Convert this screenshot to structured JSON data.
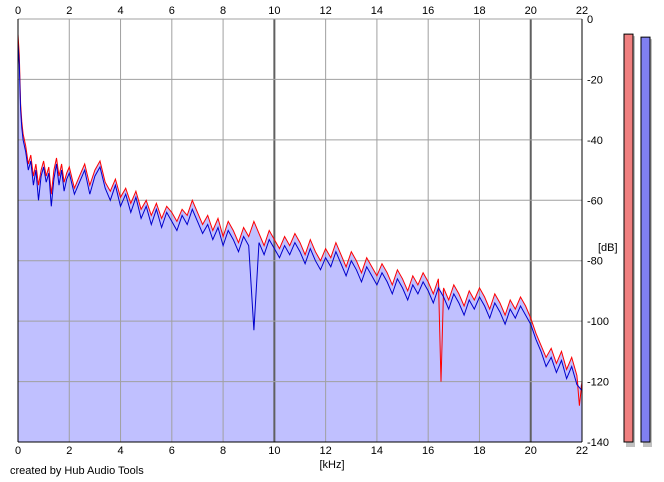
{
  "chart_data": {
    "type": "area",
    "title": "",
    "xlabel": "[kHz]",
    "ylabel": "[dB]",
    "xlim": [
      0,
      22
    ],
    "ylim": [
      -140,
      0
    ],
    "x_ticks": [
      0,
      2,
      4,
      6,
      8,
      10,
      12,
      14,
      16,
      18,
      20,
      22
    ],
    "y_ticks": [
      0,
      -20,
      -40,
      -60,
      -80,
      -100,
      -120,
      -140
    ],
    "grid": true,
    "series": [
      {
        "color": "#ff0000",
        "points": [
          [
            0.0,
            -5
          ],
          [
            0.05,
            -12
          ],
          [
            0.1,
            -28
          ],
          [
            0.15,
            -34
          ],
          [
            0.2,
            -38
          ],
          [
            0.3,
            -42
          ],
          [
            0.4,
            -48
          ],
          [
            0.5,
            -45
          ],
          [
            0.6,
            -52
          ],
          [
            0.7,
            -48
          ],
          [
            0.8,
            -55
          ],
          [
            0.9,
            -50
          ],
          [
            1.0,
            -47
          ],
          [
            1.1,
            -52
          ],
          [
            1.2,
            -49
          ],
          [
            1.3,
            -58
          ],
          [
            1.4,
            -50
          ],
          [
            1.5,
            -46
          ],
          [
            1.6,
            -52
          ],
          [
            1.7,
            -48
          ],
          [
            1.8,
            -54
          ],
          [
            1.9,
            -51
          ],
          [
            2.0,
            -49
          ],
          [
            2.2,
            -56
          ],
          [
            2.4,
            -52
          ],
          [
            2.6,
            -48
          ],
          [
            2.8,
            -55
          ],
          [
            3.0,
            -50
          ],
          [
            3.2,
            -47
          ],
          [
            3.4,
            -54
          ],
          [
            3.6,
            -57
          ],
          [
            3.8,
            -53
          ],
          [
            4.0,
            -59
          ],
          [
            4.2,
            -56
          ],
          [
            4.4,
            -61
          ],
          [
            4.6,
            -57
          ],
          [
            4.8,
            -63
          ],
          [
            5.0,
            -60
          ],
          [
            5.2,
            -65
          ],
          [
            5.4,
            -61
          ],
          [
            5.6,
            -66
          ],
          [
            5.8,
            -62
          ],
          [
            6.0,
            -64
          ],
          [
            6.2,
            -67
          ],
          [
            6.4,
            -63
          ],
          [
            6.6,
            -65
          ],
          [
            6.8,
            -60
          ],
          [
            7.0,
            -64
          ],
          [
            7.2,
            -68
          ],
          [
            7.4,
            -65
          ],
          [
            7.6,
            -70
          ],
          [
            7.8,
            -66
          ],
          [
            8.0,
            -72
          ],
          [
            8.2,
            -67
          ],
          [
            8.4,
            -70
          ],
          [
            8.6,
            -74
          ],
          [
            8.8,
            -69
          ],
          [
            9.0,
            -72
          ],
          [
            9.2,
            -67
          ],
          [
            9.4,
            -71
          ],
          [
            9.6,
            -75
          ],
          [
            9.8,
            -70
          ],
          [
            10.0,
            -73
          ],
          [
            10.2,
            -76
          ],
          [
            10.4,
            -72
          ],
          [
            10.6,
            -75
          ],
          [
            10.8,
            -71
          ],
          [
            11.0,
            -74
          ],
          [
            11.2,
            -78
          ],
          [
            11.4,
            -73
          ],
          [
            11.6,
            -77
          ],
          [
            11.8,
            -80
          ],
          [
            12.0,
            -76
          ],
          [
            12.2,
            -79
          ],
          [
            12.4,
            -74
          ],
          [
            12.6,
            -78
          ],
          [
            12.8,
            -82
          ],
          [
            13.0,
            -77
          ],
          [
            13.2,
            -80
          ],
          [
            13.4,
            -84
          ],
          [
            13.6,
            -79
          ],
          [
            13.8,
            -82
          ],
          [
            14.0,
            -85
          ],
          [
            14.2,
            -81
          ],
          [
            14.4,
            -84
          ],
          [
            14.6,
            -88
          ],
          [
            14.8,
            -83
          ],
          [
            15.0,
            -86
          ],
          [
            15.2,
            -90
          ],
          [
            15.4,
            -85
          ],
          [
            15.6,
            -88
          ],
          [
            15.8,
            -84
          ],
          [
            16.0,
            -87
          ],
          [
            16.2,
            -91
          ],
          [
            16.4,
            -86
          ],
          [
            16.5,
            -120
          ],
          [
            16.6,
            -89
          ],
          [
            16.8,
            -93
          ],
          [
            17.0,
            -88
          ],
          [
            17.2,
            -91
          ],
          [
            17.4,
            -95
          ],
          [
            17.6,
            -90
          ],
          [
            17.8,
            -93
          ],
          [
            18.0,
            -89
          ],
          [
            18.2,
            -92
          ],
          [
            18.4,
            -96
          ],
          [
            18.6,
            -91
          ],
          [
            18.8,
            -94
          ],
          [
            19.0,
            -98
          ],
          [
            19.2,
            -93
          ],
          [
            19.4,
            -96
          ],
          [
            19.6,
            -92
          ],
          [
            19.8,
            -95
          ],
          [
            20.0,
            -99
          ],
          [
            20.2,
            -104
          ],
          [
            20.4,
            -108
          ],
          [
            20.6,
            -112
          ],
          [
            20.8,
            -109
          ],
          [
            21.0,
            -114
          ],
          [
            21.2,
            -110
          ],
          [
            21.4,
            -116
          ],
          [
            21.6,
            -112
          ],
          [
            21.8,
            -118
          ],
          [
            21.9,
            -128
          ],
          [
            22.0,
            -120
          ]
        ]
      },
      {
        "color": "#0000cc",
        "points": [
          [
            0.0,
            -8
          ],
          [
            0.05,
            -15
          ],
          [
            0.1,
            -30
          ],
          [
            0.15,
            -36
          ],
          [
            0.2,
            -40
          ],
          [
            0.3,
            -44
          ],
          [
            0.4,
            -50
          ],
          [
            0.5,
            -47
          ],
          [
            0.6,
            -55
          ],
          [
            0.7,
            -50
          ],
          [
            0.8,
            -60
          ],
          [
            0.9,
            -52
          ],
          [
            1.0,
            -49
          ],
          [
            1.1,
            -54
          ],
          [
            1.2,
            -51
          ],
          [
            1.3,
            -62
          ],
          [
            1.4,
            -53
          ],
          [
            1.5,
            -48
          ],
          [
            1.6,
            -55
          ],
          [
            1.7,
            -50
          ],
          [
            1.8,
            -57
          ],
          [
            1.9,
            -53
          ],
          [
            2.0,
            -51
          ],
          [
            2.2,
            -58
          ],
          [
            2.4,
            -54
          ],
          [
            2.6,
            -50
          ],
          [
            2.8,
            -58
          ],
          [
            3.0,
            -52
          ],
          [
            3.2,
            -49
          ],
          [
            3.4,
            -56
          ],
          [
            3.6,
            -60
          ],
          [
            3.8,
            -55
          ],
          [
            4.0,
            -62
          ],
          [
            4.2,
            -58
          ],
          [
            4.4,
            -64
          ],
          [
            4.6,
            -59
          ],
          [
            4.8,
            -66
          ],
          [
            5.0,
            -62
          ],
          [
            5.2,
            -68
          ],
          [
            5.4,
            -63
          ],
          [
            5.6,
            -69
          ],
          [
            5.8,
            -64
          ],
          [
            6.0,
            -67
          ],
          [
            6.2,
            -70
          ],
          [
            6.4,
            -65
          ],
          [
            6.6,
            -68
          ],
          [
            6.8,
            -63
          ],
          [
            7.0,
            -67
          ],
          [
            7.2,
            -71
          ],
          [
            7.4,
            -68
          ],
          [
            7.6,
            -73
          ],
          [
            7.8,
            -69
          ],
          [
            8.0,
            -75
          ],
          [
            8.2,
            -70
          ],
          [
            8.4,
            -73
          ],
          [
            8.6,
            -77
          ],
          [
            8.8,
            -72
          ],
          [
            9.0,
            -75
          ],
          [
            9.2,
            -103
          ],
          [
            9.4,
            -74
          ],
          [
            9.6,
            -78
          ],
          [
            9.8,
            -73
          ],
          [
            10.0,
            -76
          ],
          [
            10.2,
            -79
          ],
          [
            10.4,
            -75
          ],
          [
            10.6,
            -78
          ],
          [
            10.8,
            -74
          ],
          [
            11.0,
            -77
          ],
          [
            11.2,
            -81
          ],
          [
            11.4,
            -76
          ],
          [
            11.6,
            -80
          ],
          [
            11.8,
            -83
          ],
          [
            12.0,
            -79
          ],
          [
            12.2,
            -82
          ],
          [
            12.4,
            -77
          ],
          [
            12.6,
            -81
          ],
          [
            12.8,
            -85
          ],
          [
            13.0,
            -80
          ],
          [
            13.2,
            -83
          ],
          [
            13.4,
            -87
          ],
          [
            13.6,
            -82
          ],
          [
            13.8,
            -85
          ],
          [
            14.0,
            -88
          ],
          [
            14.2,
            -84
          ],
          [
            14.4,
            -87
          ],
          [
            14.6,
            -91
          ],
          [
            14.8,
            -86
          ],
          [
            15.0,
            -89
          ],
          [
            15.2,
            -93
          ],
          [
            15.4,
            -88
          ],
          [
            15.6,
            -91
          ],
          [
            15.8,
            -87
          ],
          [
            16.0,
            -90
          ],
          [
            16.2,
            -94
          ],
          [
            16.4,
            -89
          ],
          [
            16.6,
            -92
          ],
          [
            16.8,
            -96
          ],
          [
            17.0,
            -91
          ],
          [
            17.2,
            -94
          ],
          [
            17.4,
            -98
          ],
          [
            17.6,
            -93
          ],
          [
            17.8,
            -96
          ],
          [
            18.0,
            -92
          ],
          [
            18.2,
            -95
          ],
          [
            18.4,
            -99
          ],
          [
            18.6,
            -94
          ],
          [
            18.8,
            -97
          ],
          [
            19.0,
            -101
          ],
          [
            19.2,
            -96
          ],
          [
            19.4,
            -99
          ],
          [
            19.6,
            -95
          ],
          [
            19.8,
            -98
          ],
          [
            20.0,
            -101
          ],
          [
            20.2,
            -106
          ],
          [
            20.4,
            -110
          ],
          [
            20.6,
            -115
          ],
          [
            20.8,
            -112
          ],
          [
            21.0,
            -117
          ],
          [
            21.2,
            -113
          ],
          [
            21.4,
            -119
          ],
          [
            21.6,
            -115
          ],
          [
            21.8,
            -121
          ],
          [
            22.0,
            -123
          ]
        ]
      }
    ],
    "meters": [
      {
        "color": "#f08080",
        "value": -5
      },
      {
        "color": "#8080f0",
        "value": -6
      }
    ]
  },
  "footer": {
    "credit": "created by Hub Audio Tools"
  },
  "colors": {
    "fill": "#c0c0ff",
    "grid": "#a0a0a0",
    "grid_major": "#606060",
    "frame": "#000000"
  }
}
